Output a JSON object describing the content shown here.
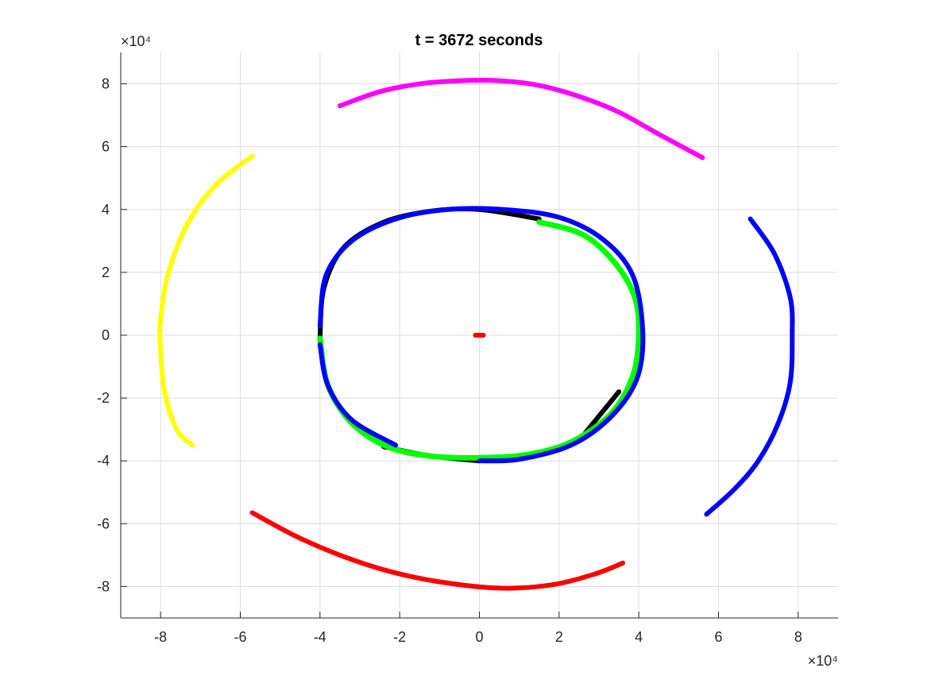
{
  "chart_data": {
    "type": "line",
    "title": "t = 3672 seconds",
    "xlabel": "",
    "ylabel": "",
    "x_exponent_label": "×10⁴",
    "y_exponent_label": "×10⁴",
    "xlim": [
      -9,
      9
    ],
    "ylim": [
      -9,
      9
    ],
    "scale_factor": 10000,
    "grid": true,
    "xticks": [
      -8,
      -6,
      -4,
      -2,
      0,
      2,
      4,
      6,
      8
    ],
    "yticks": [
      -8,
      -6,
      -4,
      -2,
      0,
      2,
      4,
      6,
      8
    ],
    "series": [
      {
        "color": "#ff00ff",
        "width": 6,
        "points": [
          [
            -3.5,
            7.3
          ],
          [
            -2.5,
            7.75
          ],
          [
            -1.5,
            8.0
          ],
          [
            -0.5,
            8.1
          ],
          [
            0.5,
            8.1
          ],
          [
            1.5,
            7.95
          ],
          [
            2.5,
            7.6
          ],
          [
            3.5,
            7.1
          ],
          [
            4.5,
            6.4
          ],
          [
            5.6,
            5.65
          ]
        ]
      },
      {
        "color": "#ffff00",
        "width": 6,
        "points": [
          [
            -5.7,
            5.7
          ],
          [
            -6.6,
            4.8
          ],
          [
            -7.3,
            3.6
          ],
          [
            -7.8,
            2.0
          ],
          [
            -8.0,
            0.5
          ],
          [
            -8.0,
            -0.5
          ],
          [
            -7.9,
            -1.8
          ],
          [
            -7.6,
            -3.0
          ],
          [
            -7.2,
            -3.5
          ]
        ]
      },
      {
        "color": "#0000ff",
        "width": 6,
        "points": [
          [
            6.8,
            3.7
          ],
          [
            7.4,
            2.6
          ],
          [
            7.8,
            1.2
          ],
          [
            7.85,
            0.0
          ],
          [
            7.8,
            -1.5
          ],
          [
            7.5,
            -2.8
          ],
          [
            7.0,
            -4.0
          ],
          [
            6.4,
            -4.9
          ],
          [
            5.7,
            -5.7
          ]
        ]
      },
      {
        "color": "#ff0000",
        "width": 6,
        "points": [
          [
            -5.7,
            -5.65
          ],
          [
            -4.6,
            -6.4
          ],
          [
            -3.5,
            -7.0
          ],
          [
            -2.3,
            -7.5
          ],
          [
            -1.0,
            -7.85
          ],
          [
            0.5,
            -8.05
          ],
          [
            1.8,
            -7.95
          ],
          [
            2.9,
            -7.6
          ],
          [
            3.6,
            -7.25
          ]
        ]
      },
      {
        "color": "#ff0000",
        "width": 6,
        "points": [
          [
            -0.1,
            0.0
          ],
          [
            0.1,
            0.0
          ]
        ]
      },
      {
        "color": "#000000",
        "width": 6,
        "points": [
          [
            -4.0,
            -0.1
          ],
          [
            -3.9,
            1.5
          ],
          [
            -3.4,
            2.8
          ],
          [
            -2.4,
            3.6
          ],
          [
            -1.2,
            3.95
          ],
          [
            0.0,
            4.0
          ],
          [
            1.5,
            3.7
          ]
        ]
      },
      {
        "color": "#000000",
        "width": 6,
        "points": [
          [
            -2.4,
            -3.55
          ],
          [
            -1.2,
            -3.85
          ],
          [
            0.0,
            -4.0
          ]
        ]
      },
      {
        "color": "#000000",
        "width": 6,
        "points": [
          [
            2.6,
            -3.2
          ],
          [
            3.5,
            -1.8
          ]
        ]
      },
      {
        "color": "#00ff00",
        "width": 7,
        "points": [
          [
            1.5,
            3.6
          ],
          [
            2.6,
            3.2
          ],
          [
            3.4,
            2.3
          ],
          [
            3.9,
            1.2
          ],
          [
            4.0,
            0.0
          ],
          [
            3.85,
            -1.3
          ],
          [
            3.3,
            -2.5
          ],
          [
            2.3,
            -3.4
          ],
          [
            1.2,
            -3.8
          ],
          [
            0.0,
            -3.9
          ],
          [
            -1.2,
            -3.85
          ],
          [
            -2.3,
            -3.55
          ],
          [
            -3.2,
            -2.8
          ],
          [
            -3.8,
            -1.6
          ],
          [
            -4.0,
            -0.1
          ]
        ]
      },
      {
        "color": "#0000ff",
        "width": 6,
        "points": [
          [
            -4.0,
            0.3
          ],
          [
            -3.85,
            1.9
          ],
          [
            -3.2,
            3.0
          ],
          [
            -2.1,
            3.7
          ],
          [
            -0.8,
            4.0
          ],
          [
            0.6,
            4.0
          ],
          [
            2.0,
            3.75
          ],
          [
            3.1,
            3.05
          ],
          [
            3.85,
            1.9
          ],
          [
            4.1,
            0.1
          ],
          [
            3.95,
            -1.4
          ],
          [
            3.3,
            -2.6
          ],
          [
            2.3,
            -3.5
          ],
          [
            1.0,
            -3.95
          ],
          [
            0.0,
            -4.0
          ]
        ]
      },
      {
        "color": "#0000ff",
        "width": 6,
        "points": [
          [
            -4.0,
            -0.3
          ],
          [
            -3.8,
            -1.6
          ],
          [
            -3.2,
            -2.7
          ],
          [
            -2.1,
            -3.5
          ]
        ]
      }
    ]
  }
}
